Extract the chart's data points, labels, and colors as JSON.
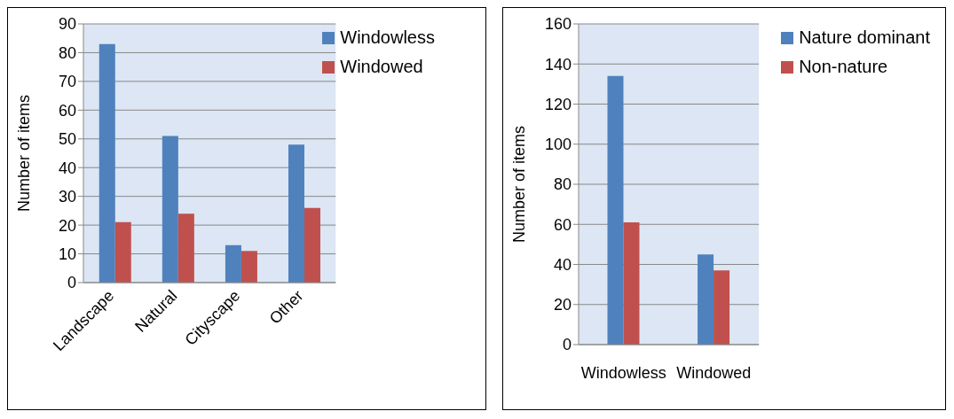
{
  "chart_data": [
    {
      "type": "bar",
      "ylabel": "Number of items",
      "categories": [
        "Landscape",
        "Natural",
        "Cityscape",
        "Other"
      ],
      "series": [
        {
          "name": "Windowless",
          "color": "#4f81bd",
          "values": [
            83,
            51,
            13,
            48
          ]
        },
        {
          "name": "Windowed",
          "color": "#c0504d",
          "values": [
            21,
            24,
            11,
            26
          ]
        }
      ],
      "ylim": [
        0,
        90
      ],
      "yticks": [
        0,
        10,
        20,
        30,
        40,
        50,
        60,
        70,
        80,
        90
      ],
      "grid": "y",
      "legend": "top right"
    },
    {
      "type": "bar",
      "ylabel": "Number of items",
      "categories": [
        "Windowless",
        "Windowed"
      ],
      "series": [
        {
          "name": "Nature dominant",
          "color": "#4f81bd",
          "values": [
            134,
            45
          ]
        },
        {
          "name": "Non-nature",
          "color": "#c0504d",
          "values": [
            61,
            37
          ]
        }
      ],
      "ylim": [
        0,
        160
      ],
      "yticks": [
        0,
        20,
        40,
        60,
        80,
        100,
        120,
        140,
        160
      ],
      "grid": "y",
      "legend": "top right"
    }
  ]
}
